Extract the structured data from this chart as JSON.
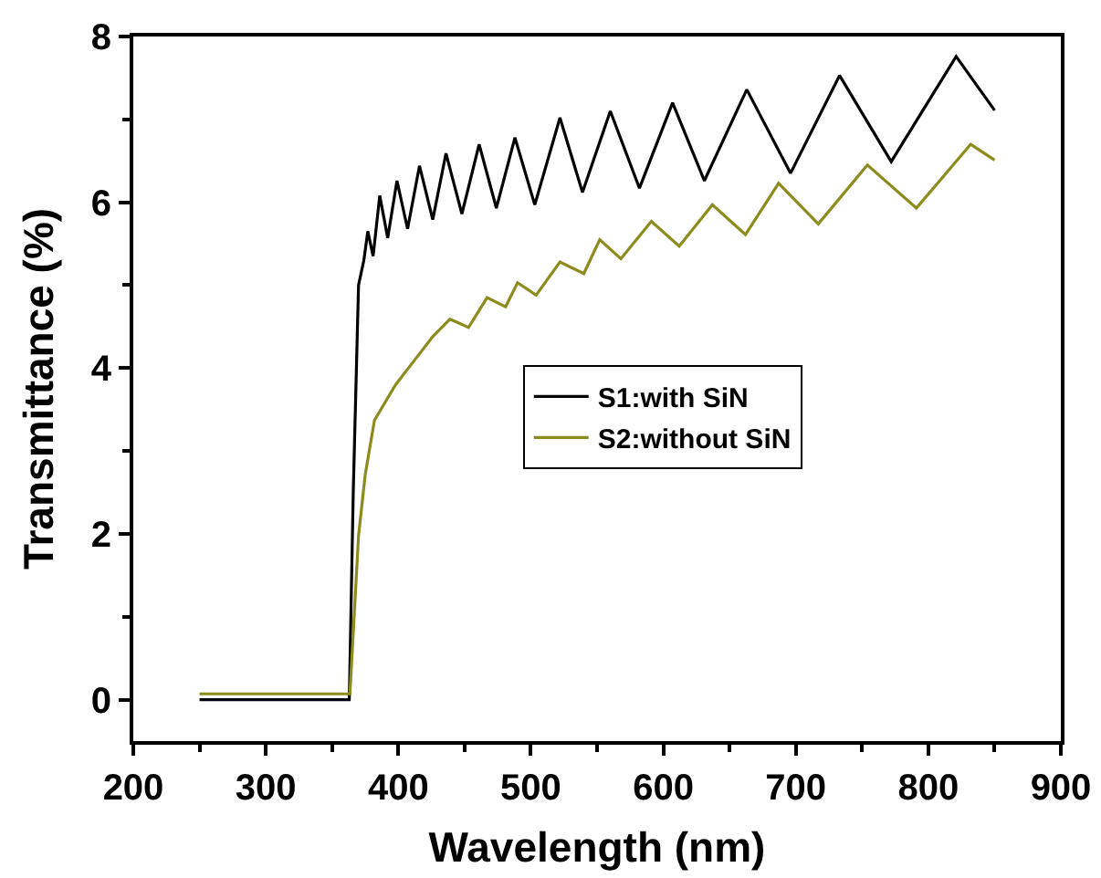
{
  "chart_data": {
    "type": "line",
    "xlabel": "Wavelength (nm)",
    "ylabel": "Transmittance (%)",
    "xlim": [
      200,
      900
    ],
    "ylim": [
      -0.5,
      8
    ],
    "xticks": [
      200,
      300,
      400,
      500,
      600,
      700,
      800,
      900
    ],
    "yticks": [
      0,
      2,
      4,
      6,
      8
    ],
    "grid": false,
    "legend": "right",
    "marker": "none",
    "line_style": "solid",
    "series": [
      {
        "name": "S1:with SiN",
        "color": "#000000",
        "x": [
          250,
          363,
          366,
          370,
          374,
          377,
          381,
          386,
          392,
          399,
          407,
          416,
          426,
          436,
          448,
          461,
          474,
          488,
          503,
          522,
          539,
          560,
          582,
          607,
          631,
          663,
          696,
          733,
          772,
          821,
          850
        ],
        "values": [
          0,
          0,
          2.5,
          5.0,
          5.3,
          5.65,
          5.35,
          6.08,
          5.57,
          6.26,
          5.68,
          6.44,
          5.79,
          6.59,
          5.86,
          6.7,
          5.93,
          6.78,
          5.97,
          7.02,
          6.12,
          7.1,
          6.17,
          7.2,
          6.26,
          7.36,
          6.35,
          7.53,
          6.49,
          7.76,
          7.11
        ]
      },
      {
        "name": "S2:without SiN",
        "color": "#8c8c1e",
        "x": [
          250,
          363.5,
          366,
          370,
          375,
          382,
          398,
          412,
          426,
          439,
          453,
          467,
          481,
          490,
          504,
          522,
          540,
          552,
          568,
          591,
          612,
          637,
          662,
          687,
          717,
          754,
          791,
          832,
          850
        ],
        "values": [
          0.07,
          0.07,
          0.8,
          1.98,
          2.71,
          3.37,
          3.8,
          4.09,
          4.38,
          4.59,
          4.49,
          4.85,
          4.74,
          5.03,
          4.88,
          5.28,
          5.14,
          5.55,
          5.32,
          5.77,
          5.47,
          5.97,
          5.61,
          6.23,
          5.74,
          6.45,
          5.93,
          6.7,
          6.51
        ]
      }
    ]
  }
}
